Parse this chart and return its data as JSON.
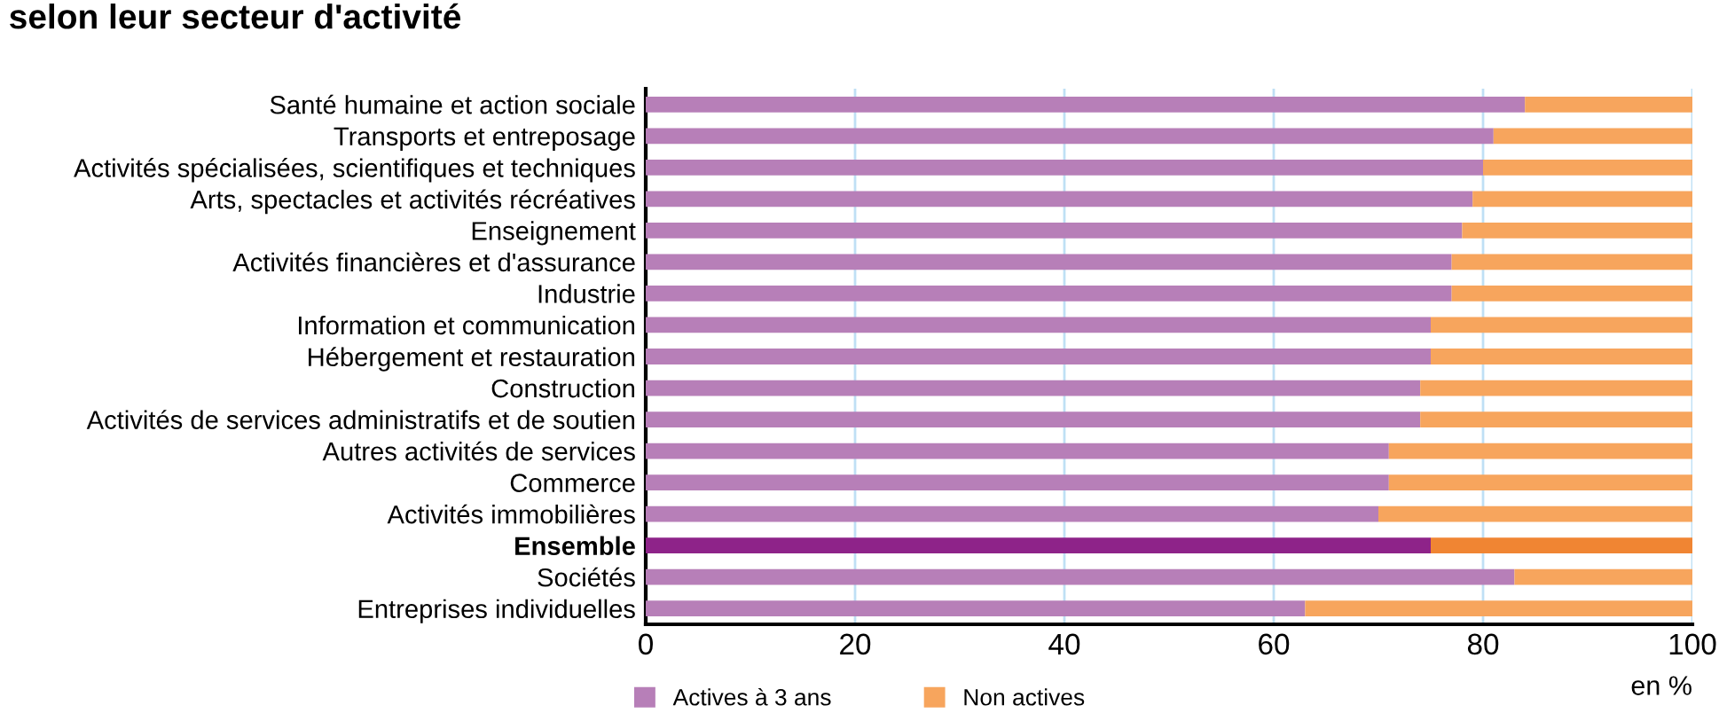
{
  "chart_data": {
    "type": "bar",
    "orientation": "horizontal",
    "stacked": true,
    "title": "selon leur secteur d'activité",
    "xlabel": "en %",
    "categories": [
      "Santé humaine et action sociale",
      "Transports et entreposage",
      "Activités spécialisées, scientifiques et techniques",
      "Arts, spectacles et activités récréatives",
      "Enseignement",
      "Activités financières et d'assurance",
      "Industrie",
      "Information et communication",
      "Hébergement et restauration",
      "Construction",
      "Activités de services administratifs et de soutien",
      "Autres activités de services",
      "Commerce",
      "Activités immobilières",
      "Ensemble",
      "Sociétés",
      "Entreprises individuelles"
    ],
    "series": [
      {
        "name": "Actives à 3 ans",
        "color": "#b77fb8",
        "colors": [
          "#b77fb8",
          "#b77fb8",
          "#b77fb8",
          "#b77fb8",
          "#b77fb8",
          "#b77fb8",
          "#b77fb8",
          "#b77fb8",
          "#b77fb8",
          "#b77fb8",
          "#b77fb8",
          "#b77fb8",
          "#b77fb8",
          "#b77fb8",
          "#8e2389",
          "#b77fb8",
          "#b77fb8"
        ],
        "values": [
          84,
          81,
          80,
          79,
          78,
          77,
          77,
          75,
          75,
          74,
          74,
          71,
          71,
          70,
          75,
          83,
          63
        ]
      },
      {
        "name": "Non actives",
        "color": "#f7a55d",
        "colors": [
          "#f7a55d",
          "#f7a55d",
          "#f7a55d",
          "#f7a55d",
          "#f7a55d",
          "#f7a55d",
          "#f7a55d",
          "#f7a55d",
          "#f7a55d",
          "#f7a55d",
          "#f7a55d",
          "#f7a55d",
          "#f7a55d",
          "#f7a55d",
          "#f08533",
          "#f7a55d",
          "#f7a55d"
        ],
        "values": [
          16,
          19,
          20,
          21,
          22,
          23,
          23,
          25,
          25,
          26,
          26,
          29,
          29,
          30,
          25,
          17,
          37
        ]
      }
    ],
    "xlim": [
      0,
      100
    ],
    "xticks": [
      0,
      20,
      40,
      60,
      80,
      100
    ],
    "grid": "x",
    "legend": "bottom"
  }
}
